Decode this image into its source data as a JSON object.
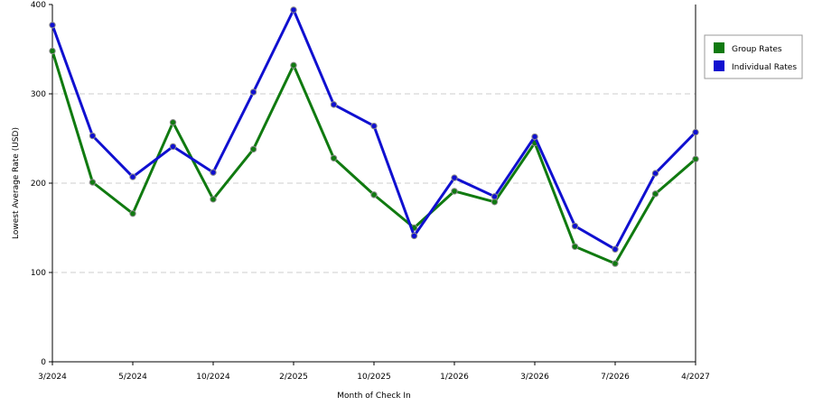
{
  "chart_data": {
    "type": "line",
    "xlabel": "Month of Check In",
    "ylabel": "Lowest Average Rate (USD)",
    "ylim": [
      0,
      400
    ],
    "yticks": [
      0,
      100,
      200,
      300,
      400
    ],
    "x_tick_labels": [
      {
        "index": 0,
        "label": "3/2024"
      },
      {
        "index": 2,
        "label": "5/2024"
      },
      {
        "index": 4,
        "label": "10/2024"
      },
      {
        "index": 6,
        "label": "2/2025"
      },
      {
        "index": 8,
        "label": "10/2025"
      },
      {
        "index": 10,
        "label": "1/2026"
      },
      {
        "index": 12,
        "label": "3/2026"
      },
      {
        "index": 14,
        "label": "7/2026"
      },
      {
        "index": 16,
        "label": "4/2027"
      }
    ],
    "point_count": 17,
    "grid": "horizontal dashed",
    "legend_position": "right",
    "series": [
      {
        "name": "Group Rates",
        "color": "#107a10",
        "values": [
          348,
          201,
          166,
          268,
          182,
          238,
          332,
          228,
          187,
          150,
          191,
          179,
          245,
          129,
          110,
          188,
          227
        ]
      },
      {
        "name": "Individual Rates",
        "color": "#1010d0",
        "values": [
          377,
          253,
          207,
          241,
          212,
          302,
          394,
          288,
          264,
          141,
          206,
          185,
          252,
          152,
          126,
          211,
          257
        ]
      }
    ]
  }
}
